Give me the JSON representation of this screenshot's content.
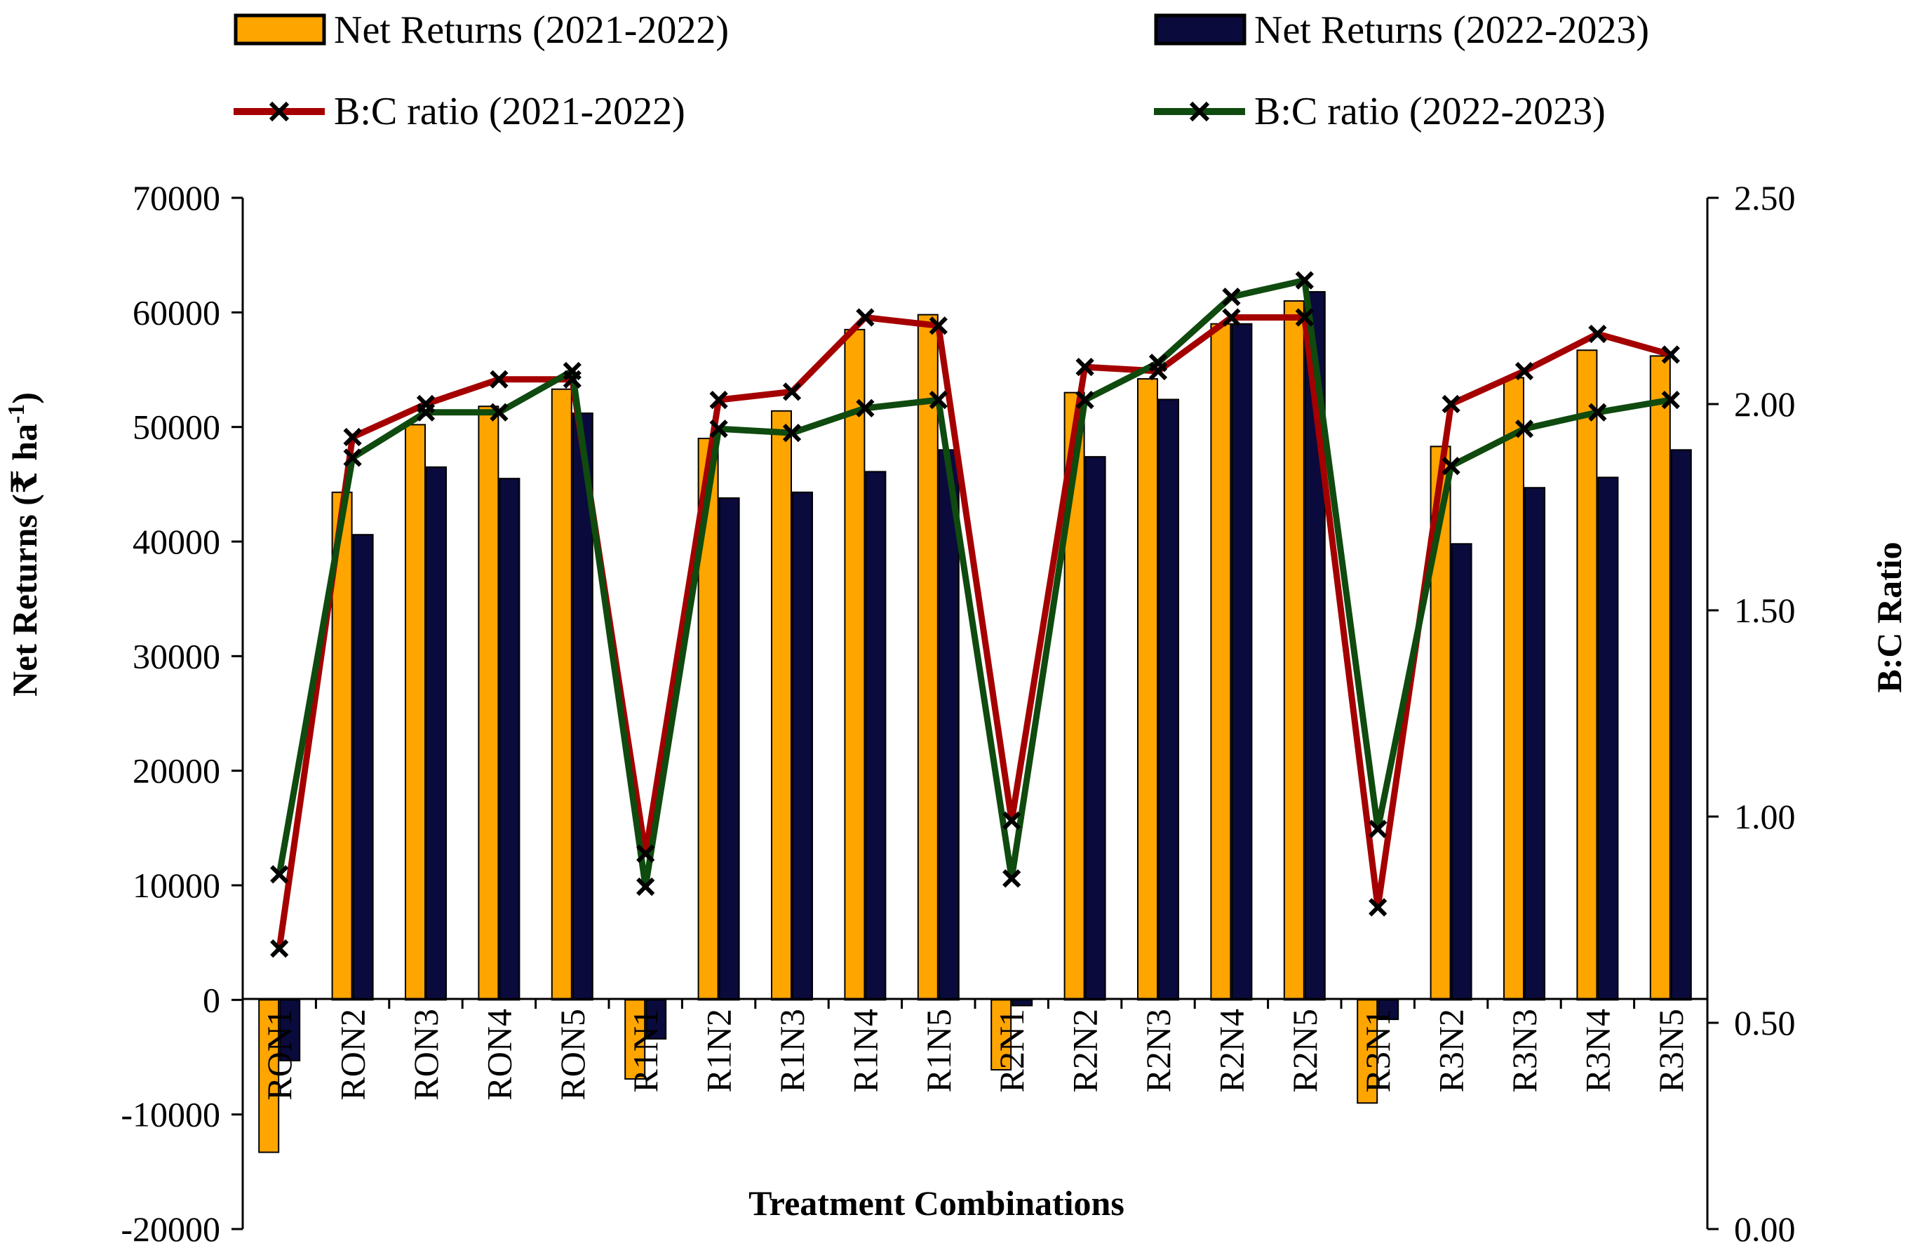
{
  "chart_data": {
    "type": "bar+line",
    "title": "",
    "xlabel": "Treatment Combinations",
    "ylabel_left": "Net Returns (₹ ha-1)",
    "ylabel_left_parts": {
      "main": "Net Returns (₹ ha",
      "sup": "-1",
      "close": ")"
    },
    "ylabel_right": "B:C Ratio",
    "ylim_left": [
      -20000,
      70000
    ],
    "ylim_right": [
      0.0,
      2.5
    ],
    "yticks_left": [
      "70000",
      "60000",
      "50000",
      "40000",
      "30000",
      "20000",
      "10000",
      "0",
      "-10000",
      "-20000"
    ],
    "yticks_right": [
      "2.50",
      "2.00",
      "1.50",
      "1.00",
      "0.50",
      "0.00"
    ],
    "grid": false,
    "legend_position": "top",
    "categories": [
      "RON1",
      "RON2",
      "RON3",
      "RON4",
      "RON5",
      "R1N1",
      "R1N2",
      "R1N3",
      "R1N4",
      "R1N5",
      "R2N1",
      "R2N2",
      "R2N3",
      "R2N4",
      "R2N5",
      "R3N1",
      "R3N2",
      "R3N3",
      "R3N4",
      "R3N5"
    ],
    "bar_series": [
      {
        "name": "Net Returns (2021-2022)",
        "color": "#FFA500",
        "values": [
          -13300,
          44300,
          50200,
          51800,
          53300,
          -6900,
          49000,
          51400,
          58500,
          59800,
          -6100,
          53000,
          54200,
          59000,
          61000,
          -9000,
          48300,
          54300,
          56700,
          56200
        ]
      },
      {
        "name": "Net Returns (2022-2023)",
        "color": "#0A0A3C",
        "values": [
          -5300,
          40600,
          46500,
          45500,
          51200,
          -3400,
          43800,
          44300,
          46100,
          48000,
          -500,
          47400,
          52400,
          59000,
          61800,
          -1700,
          39800,
          44700,
          45600,
          48000
        ]
      }
    ],
    "line_series": [
      {
        "name": "B:C ratio (2021-2022)",
        "color": "#A50000",
        "values": [
          0.68,
          1.92,
          2.0,
          2.06,
          2.06,
          0.91,
          2.01,
          2.03,
          2.21,
          2.19,
          0.99,
          2.09,
          2.08,
          2.21,
          2.21,
          0.78,
          2.0,
          2.08,
          2.17,
          2.12
        ]
      },
      {
        "name": "B:C ratio (2022-2023)",
        "color": "#0F4A0F",
        "values": [
          0.86,
          1.87,
          1.98,
          1.98,
          2.08,
          0.83,
          1.94,
          1.93,
          1.99,
          2.01,
          0.85,
          2.01,
          2.1,
          2.26,
          2.3,
          0.97,
          1.85,
          1.94,
          1.98,
          2.01
        ]
      }
    ]
  }
}
